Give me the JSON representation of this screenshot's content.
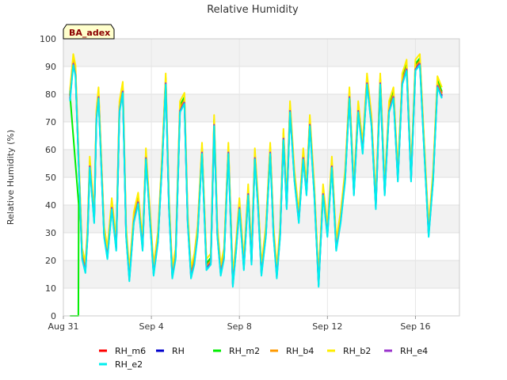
{
  "chart_data": {
    "type": "line",
    "title": "Relative Humidity",
    "xlabel": "",
    "ylabel": "Relative Humidity (%)",
    "site_badge": "BA_adex",
    "ylim": [
      0,
      100
    ],
    "yticks": [
      0,
      10,
      20,
      30,
      40,
      50,
      60,
      70,
      80,
      90,
      100
    ],
    "xlim_days": [
      0,
      18
    ],
    "xticks": [
      {
        "day": 0,
        "label": "Aug 31"
      },
      {
        "day": 4,
        "label": "Sep 4"
      },
      {
        "day": 8,
        "label": "Sep 8"
      },
      {
        "day": 12,
        "label": "Sep 12"
      },
      {
        "day": 16,
        "label": "Sep 16"
      }
    ],
    "grid": true,
    "legend_position": "bottom",
    "series": [
      {
        "name": "RH_m6",
        "color": "#ff0000",
        "offset": 0.5
      },
      {
        "name": "RH",
        "color": "#0000cc",
        "offset": -0.5
      },
      {
        "name": "RH_m2",
        "color": "#00ee00",
        "offset": 1.0
      },
      {
        "name": "RH_b4",
        "color": "#ff9900",
        "offset": 0.0
      },
      {
        "name": "RH_b2",
        "color": "#ffee00",
        "offset": 2.5
      },
      {
        "name": "RH_e4",
        "color": "#9933cc",
        "offset": -1.0
      },
      {
        "name": "RH_e2",
        "color": "#00eeee",
        "offset": -1.5
      }
    ],
    "base_profile": {
      "x": [
        0.3,
        0.45,
        0.55,
        0.7,
        0.85,
        1.0,
        1.1,
        1.2,
        1.4,
        1.5,
        1.6,
        1.75,
        1.85,
        2.0,
        2.2,
        2.4,
        2.55,
        2.7,
        2.85,
        3.0,
        3.2,
        3.4,
        3.6,
        3.75,
        3.9,
        4.1,
        4.3,
        4.5,
        4.65,
        4.8,
        4.95,
        5.1,
        5.3,
        5.5,
        5.65,
        5.8,
        5.95,
        6.1,
        6.3,
        6.5,
        6.7,
        6.85,
        7.0,
        7.15,
        7.3,
        7.5,
        7.7,
        7.85,
        8.0,
        8.2,
        8.4,
        8.55,
        8.7,
        8.85,
        9.0,
        9.2,
        9.4,
        9.55,
        9.7,
        9.85,
        10.0,
        10.15,
        10.3,
        10.5,
        10.7,
        10.9,
        11.05,
        11.2,
        11.4,
        11.6,
        11.8,
        12.0,
        12.2,
        12.4,
        12.6,
        12.8,
        13.0,
        13.2,
        13.4,
        13.6,
        13.8,
        14.0,
        14.2,
        14.4,
        14.6,
        14.8,
        15.0,
        15.2,
        15.4,
        15.6,
        15.8,
        16.0,
        16.2,
        16.4,
        16.6,
        16.8,
        17.0,
        17.2
      ],
      "y": [
        79,
        92,
        88,
        55,
        22,
        17,
        30,
        55,
        35,
        72,
        80,
        50,
        30,
        22,
        40,
        25,
        75,
        82,
        30,
        14,
        35,
        42,
        25,
        58,
        40,
        16,
        28,
        58,
        85,
        40,
        15,
        22,
        75,
        78,
        35,
        15,
        20,
        30,
        60,
        18,
        20,
        70,
        30,
        16,
        22,
        60,
        12,
        25,
        40,
        18,
        45,
        20,
        58,
        40,
        16,
        30,
        60,
        30,
        15,
        30,
        65,
        40,
        75,
        50,
        35,
        58,
        45,
        70,
        45,
        12,
        45,
        30,
        55,
        25,
        35,
        50,
        80,
        45,
        75,
        60,
        85,
        70,
        40,
        85,
        45,
        75,
        80,
        50,
        85,
        90,
        50,
        90,
        92,
        60,
        30,
        50,
        84,
        80
      ]
    },
    "rh_m2_dropout": [
      {
        "day": 0.3,
        "value": 0
      },
      {
        "day": 0.68,
        "value": 0
      },
      {
        "day": 0.7,
        "value": 40
      }
    ]
  }
}
